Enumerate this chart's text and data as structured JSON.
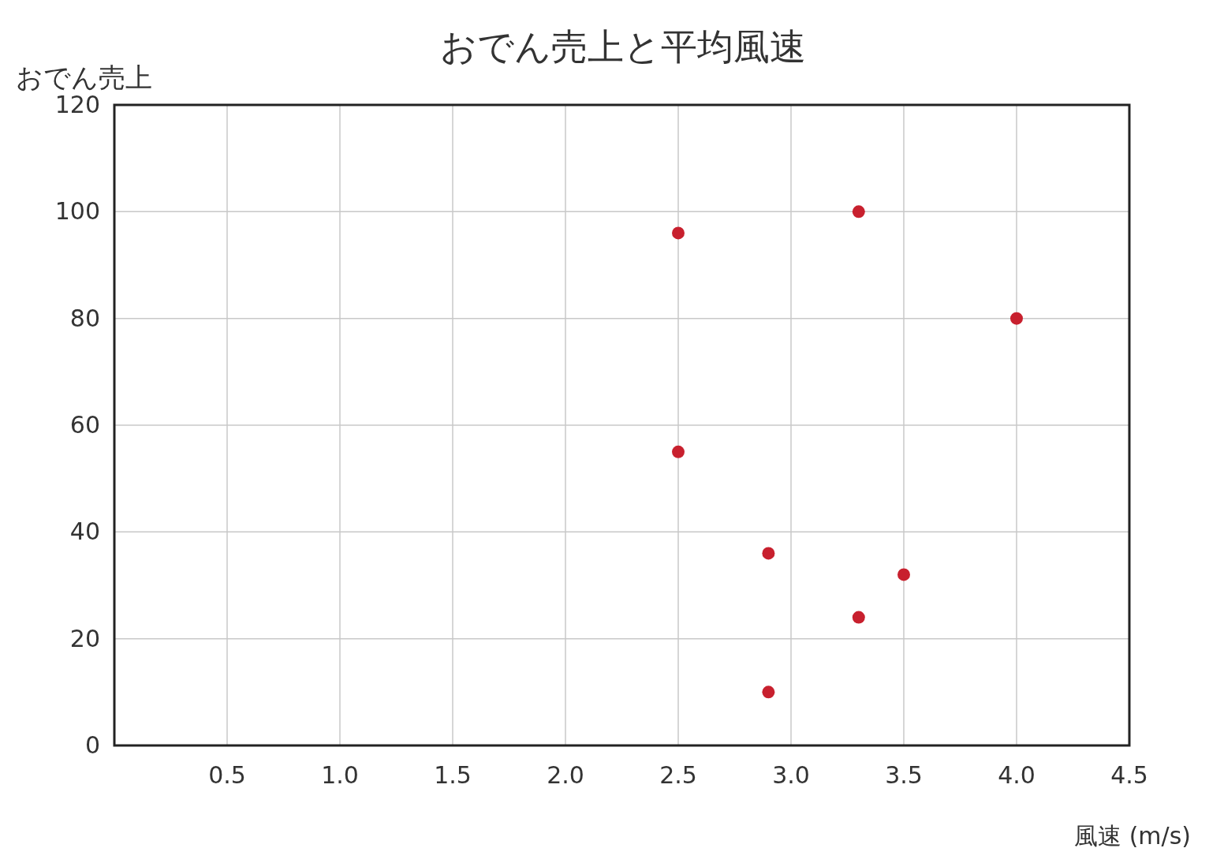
{
  "chart_data": {
    "type": "scatter",
    "title": "おでん売上と平均風速",
    "xlabel": "風速 (m/s)",
    "ylabel": "おでん売上",
    "x": [
      2.5,
      3.3,
      4.0,
      2.5,
      2.9,
      3.5,
      3.3,
      2.9
    ],
    "values": [
      96,
      100,
      80,
      55,
      36,
      32,
      24,
      10
    ],
    "color": "#c8202e",
    "marker": "circle",
    "grid": true,
    "xlim": [
      0,
      4.5
    ],
    "ylim": [
      0,
      120
    ],
    "xticks": [
      {
        "value": 0,
        "label": null
      },
      {
        "value": 0.5,
        "label": "0.5"
      },
      {
        "value": 1,
        "label": "1.0"
      },
      {
        "value": 1.5,
        "label": "1.5"
      },
      {
        "value": 2,
        "label": "2.0"
      },
      {
        "value": 2.5,
        "label": "2.5"
      },
      {
        "value": 3,
        "label": "3.0"
      },
      {
        "value": 3.5,
        "label": "3.5"
      },
      {
        "value": 4,
        "label": "4.0"
      },
      {
        "value": 4.5,
        "label": "4.5"
      }
    ],
    "yticks": [
      0,
      20,
      40,
      60,
      80,
      100,
      120
    ]
  }
}
